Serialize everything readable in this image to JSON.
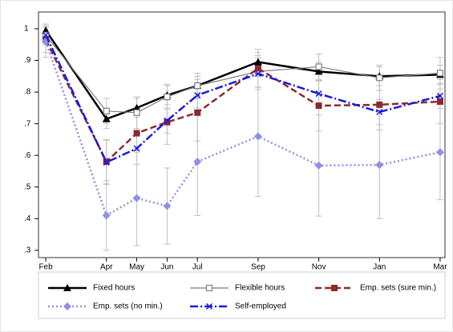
{
  "chart_data": {
    "type": "line",
    "x": [
      0,
      2,
      3,
      4,
      5,
      7,
      9,
      11,
      13
    ],
    "xlim": [
      -0.24,
      13.16
    ],
    "xticks": [
      {
        "value": 0,
        "label": "Feb"
      },
      {
        "value": 2,
        "label": "Apr"
      },
      {
        "value": 3,
        "label": "May"
      },
      {
        "value": 4,
        "label": "Jun"
      },
      {
        "value": 5,
        "label": "Jul"
      },
      {
        "value": 7,
        "label": "Sep"
      },
      {
        "value": 9,
        "label": "Nov"
      },
      {
        "value": 11,
        "label": "Jan"
      },
      {
        "value": 13,
        "label": "Mar"
      }
    ],
    "ylim": [
      0.277,
      1.053
    ],
    "yticks": [
      {
        "value": 0.3,
        "label": ".3"
      },
      {
        "value": 0.4,
        "label": ".4"
      },
      {
        "value": 0.5,
        "label": ".5"
      },
      {
        "value": 0.6,
        "label": ".6"
      },
      {
        "value": 0.7,
        "label": ".7"
      },
      {
        "value": 0.8,
        "label": ".8"
      },
      {
        "value": 0.9,
        "label": ".9"
      },
      1
    ],
    "series": [
      {
        "name": "Fixed hours",
        "color": "#000000",
        "marker": "triangle",
        "dash": "solid",
        "values": [
          0.995,
          0.715,
          0.75,
          0.79,
          0.82,
          0.895,
          0.865,
          0.85,
          0.855
        ],
        "errors": [
          0.02,
          0.03,
          0.03,
          0.03,
          0.03,
          0.03,
          0.03,
          0.03,
          0.03
        ]
      },
      {
        "name": "Flexible hours",
        "color": "#7f7f7f",
        "marker": "square-open",
        "dash": "solid",
        "values": [
          0.98,
          0.74,
          0.735,
          0.785,
          0.82,
          0.865,
          0.88,
          0.845,
          0.86
        ],
        "errors": [
          0.03,
          0.04,
          0.05,
          0.04,
          0.04,
          0.05,
          0.04,
          0.04,
          0.05
        ]
      },
      {
        "name": "Emp. sets (sure min.)",
        "color": "#8b2a2f",
        "marker": "square",
        "dash": "dash",
        "values": [
          0.965,
          0.58,
          0.67,
          0.705,
          0.735,
          0.875,
          0.757,
          0.76,
          0.77
        ],
        "errors": [
          0.04,
          0.07,
          0.06,
          0.07,
          0.09,
          0.06,
          0.08,
          0.08,
          0.07
        ]
      },
      {
        "name": "Emp. sets (no min.)",
        "color": "#8f8fe8",
        "marker": "diamond",
        "dash": "dot",
        "values": [
          0.96,
          0.41,
          0.465,
          0.44,
          0.58,
          0.66,
          0.568,
          0.57,
          0.61
        ],
        "errors": [
          0.05,
          0.11,
          0.15,
          0.12,
          0.17,
          0.19,
          0.16,
          0.17,
          0.15
        ]
      },
      {
        "name": "Self-employed",
        "color": "#1a1ae0",
        "marker": "x",
        "dash": "dashdot",
        "values": [
          0.98,
          0.578,
          0.622,
          0.71,
          0.79,
          0.858,
          0.795,
          0.737,
          0.788
        ],
        "errors": [
          0.03,
          0.07,
          0.05,
          0.04,
          0.05,
          0.05,
          0.04,
          0.04,
          0.04
        ]
      }
    ],
    "error_color": "#c0c0c0"
  }
}
